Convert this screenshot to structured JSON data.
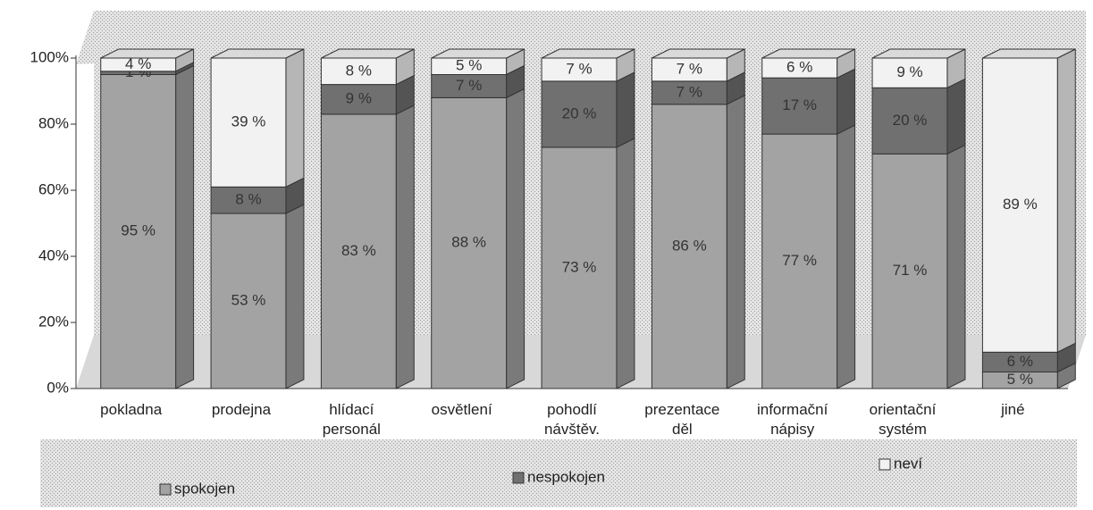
{
  "chart_data": {
    "type": "stacked_bar_3d",
    "categories": [
      "pokladna",
      "prodejna",
      "hlídací personál",
      "osvětlení",
      "pohodlí návštěv.",
      "prezentace děl",
      "informační nápisy",
      "orientační systém",
      "jiné"
    ],
    "series": [
      {
        "name": "spokojen",
        "color": "#a3a3a3",
        "values": [
          95,
          53,
          83,
          88,
          73,
          86,
          77,
          71,
          5
        ],
        "value_labels": [
          "95 %",
          "53 %",
          "83 %",
          "88 %",
          "73 %",
          "86 %",
          "77 %",
          "71 %",
          "5 %"
        ]
      },
      {
        "name": "nespokojen",
        "color": "#707070",
        "values": [
          1,
          8,
          9,
          7,
          20,
          7,
          17,
          20,
          6
        ],
        "value_labels": [
          "1 %",
          "8 %",
          "9 %",
          "7 %",
          "20 %",
          "7 %",
          "17 %",
          "20 %",
          "6 %"
        ]
      },
      {
        "name": "neví",
        "color": "#f2f2f2",
        "values": [
          4,
          39,
          8,
          5,
          7,
          7,
          6,
          9,
          89
        ],
        "value_labels": [
          "4 %",
          "39 %",
          "8 %",
          "5 %",
          "7 %",
          "7 %",
          "6 %",
          "9 %",
          "89 %"
        ]
      }
    ],
    "ylim": [
      0,
      100
    ],
    "yticks": [
      {
        "value": 0,
        "label": "0%"
      },
      {
        "value": 20,
        "label": "20%"
      },
      {
        "value": 40,
        "label": "40%"
      },
      {
        "value": 60,
        "label": "60%"
      },
      {
        "value": 80,
        "label": "80%"
      },
      {
        "value": 100,
        "label": "100%"
      }
    ],
    "legend": "bottom"
  }
}
